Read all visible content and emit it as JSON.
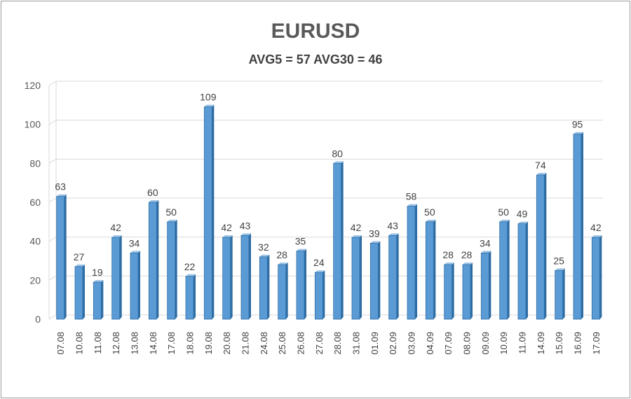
{
  "chart_data": {
    "type": "bar",
    "title": "EURUSD",
    "subtitle": "AVG5 = 57 AVG30 = 46",
    "categories": [
      "07.08",
      "10.08",
      "11.08",
      "12.08",
      "13.08",
      "14.08",
      "17.08",
      "18.08",
      "19.08",
      "20.08",
      "21.08",
      "24.08",
      "25.08",
      "26.08",
      "27.08",
      "28.08",
      "31.08",
      "01.09",
      "02.09",
      "03.09",
      "04.09",
      "07.09",
      "08.09",
      "09.09",
      "10.09",
      "11.09",
      "14.09",
      "15.09",
      "16.09",
      "17.09"
    ],
    "values": [
      63,
      27,
      19,
      42,
      34,
      60,
      50,
      22,
      109,
      42,
      43,
      32,
      28,
      35,
      24,
      80,
      42,
      39,
      43,
      58,
      50,
      28,
      28,
      34,
      50,
      49,
      74,
      25,
      95,
      42
    ],
    "ylim": [
      0,
      120
    ],
    "yticks": [
      0,
      20,
      40,
      60,
      80,
      100,
      120
    ],
    "grid": true,
    "legend": "none",
    "bar_color": "#5b9bd5",
    "bar_dark": "#2e6da4",
    "bar_light": "#9dc3e6"
  }
}
